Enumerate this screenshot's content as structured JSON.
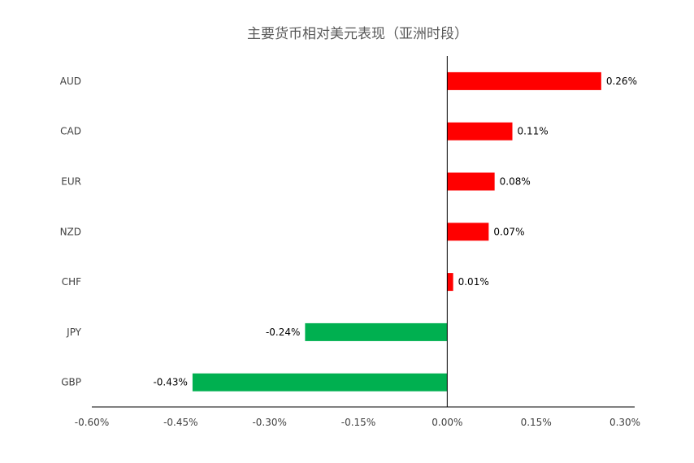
{
  "chart_data": {
    "type": "bar",
    "orientation": "horizontal",
    "title": "主要货币相对美元表现（亚洲时段）",
    "xlabel": "",
    "ylabel": "",
    "categories": [
      "AUD",
      "CAD",
      "EUR",
      "NZD",
      "CHF",
      "JPY",
      "GBP"
    ],
    "values": [
      0.26,
      0.11,
      0.08,
      0.07,
      0.01,
      -0.24,
      -0.43
    ],
    "data_labels": [
      "0.26%",
      "0.11%",
      "0.08%",
      "0.07%",
      "0.01%",
      "-0.24%",
      "-0.43%"
    ],
    "xlim": [
      -0.6,
      0.3
    ],
    "x_ticks": [
      -0.6,
      -0.45,
      -0.3,
      -0.15,
      0.0,
      0.15,
      0.3
    ],
    "x_tick_labels": [
      "-0.60%",
      "-0.45%",
      "-0.30%",
      "-0.15%",
      "0.00%",
      "0.15%",
      "0.30%"
    ],
    "grid": false,
    "legend": "none",
    "colors": {
      "positive": "#ff0000",
      "negative": "#00b050",
      "axis": "#000000",
      "text": "#404040",
      "title": "#595959"
    }
  }
}
